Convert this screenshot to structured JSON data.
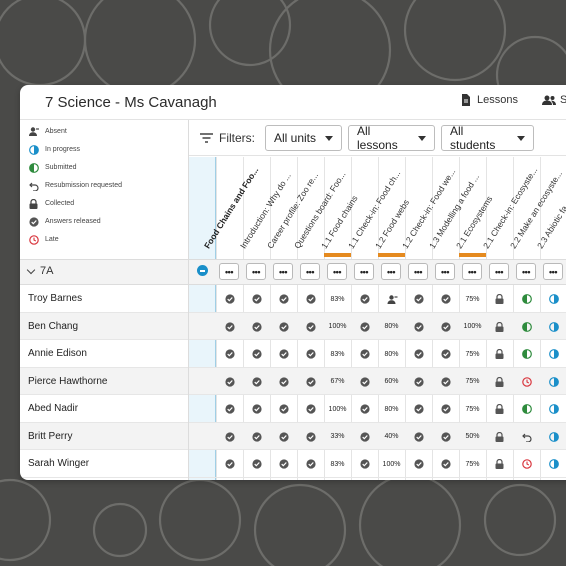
{
  "window": {
    "title": "7 Science - Ms Cavanagh",
    "nav": {
      "lessons": "Lessons",
      "students": "S"
    }
  },
  "legend": {
    "absent": "Absent",
    "in_progress": "In progress",
    "submitted": "Submitted",
    "resubmission": "Resubmission requested",
    "collected": "Collected",
    "answers_released": "Answers released",
    "late": "Late"
  },
  "filters": {
    "label": "Filters:",
    "units": "All units",
    "lessons": "All lessons",
    "students": "All students"
  },
  "columns": [
    "Food Chains and Foo...",
    "Introduction: Why do ...",
    "Career profile: Zoo re...",
    "Questions board: Foo...",
    "1.1 Food chains",
    "1.1 Check-in: Food ch...",
    "1.2 Food webs",
    "1.2 Check-in: Food we...",
    "1.3 Modelling a food ...",
    "2.1 Ecosystems",
    "2.1 Check-in: Ecosyste...",
    "2.2 Make an ecosyste...",
    "2.3 Abiotic fa..."
  ],
  "class_name": "7A",
  "dots_label": "•••",
  "colors": {
    "accent_blue": "#1a8fc9",
    "submitted_green": "#2e8b3d",
    "late_red": "#d9363e",
    "lesson_bar_orange": "#e58a1f"
  },
  "students": [
    {
      "name": "Troy Barnes",
      "cells": [
        "check",
        "check",
        "check",
        "check",
        "83%",
        "check",
        "absent",
        "check",
        "check",
        "75%",
        "lock",
        "submitted",
        "progress"
      ]
    },
    {
      "name": "Ben Chang",
      "cells": [
        "check",
        "check",
        "check",
        "check",
        "100%",
        "check",
        "80%",
        "check",
        "check",
        "100%",
        "lock",
        "submitted",
        "progress"
      ]
    },
    {
      "name": "Annie Edison",
      "cells": [
        "check",
        "check",
        "check",
        "check",
        "83%",
        "check",
        "80%",
        "check",
        "check",
        "75%",
        "lock",
        "submitted",
        "progress"
      ]
    },
    {
      "name": "Pierce Hawthorne",
      "cells": [
        "check",
        "check",
        "check",
        "check",
        "67%",
        "check",
        "60%",
        "check",
        "check",
        "75%",
        "lock",
        "late",
        "progress"
      ]
    },
    {
      "name": "Abed Nadir",
      "cells": [
        "check",
        "check",
        "check",
        "check",
        "100%",
        "check",
        "80%",
        "check",
        "check",
        "75%",
        "lock",
        "submitted",
        "progress"
      ]
    },
    {
      "name": "Britt Perry",
      "cells": [
        "check",
        "check",
        "check",
        "check",
        "33%",
        "check",
        "40%",
        "check",
        "check",
        "50%",
        "lock",
        "resubmit",
        "progress"
      ]
    },
    {
      "name": "Sarah Winger",
      "cells": [
        "check",
        "check",
        "check",
        "check",
        "83%",
        "check",
        "100%",
        "check",
        "check",
        "75%",
        "lock",
        "late",
        "progress"
      ]
    }
  ]
}
